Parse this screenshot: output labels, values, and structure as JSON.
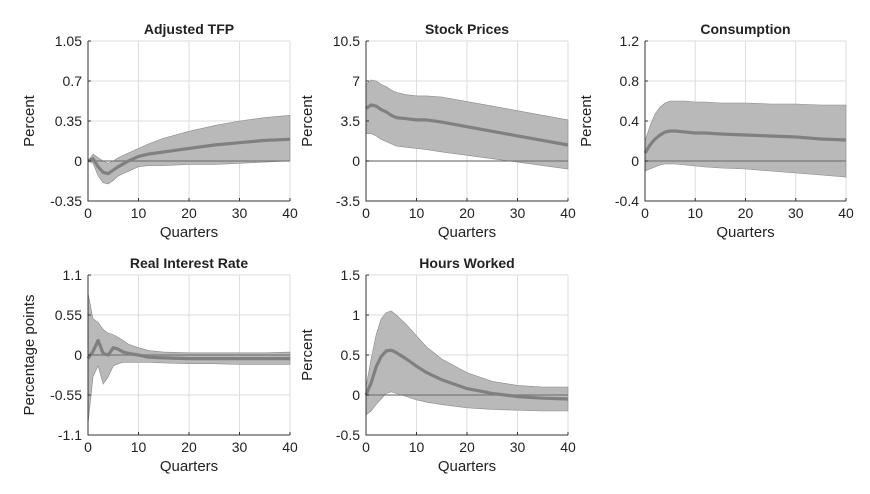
{
  "chart_data": [
    {
      "type": "line",
      "title": "Adjusted TFP",
      "xlabel": "Quarters",
      "ylabel": "Percent",
      "xlim": [
        0,
        40
      ],
      "ylim": [
        -0.35,
        1.05
      ],
      "xticks": [
        "0",
        "10",
        "20",
        "30",
        "40"
      ],
      "yticks": [
        "-0.35",
        "0",
        "0.35",
        "0.7",
        "1.05"
      ],
      "grid": true,
      "x": [
        0,
        1,
        2,
        3,
        4,
        5,
        6,
        8,
        10,
        12,
        15,
        20,
        25,
        30,
        35,
        40
      ],
      "series": [
        {
          "role": "estimate",
          "values": [
            0,
            0.02,
            -0.05,
            -0.1,
            -0.11,
            -0.08,
            -0.05,
            0.0,
            0.04,
            0.06,
            0.08,
            0.11,
            0.14,
            0.16,
            0.18,
            0.19
          ]
        },
        {
          "role": "upper",
          "values": [
            0,
            0.06,
            0.03,
            0.0,
            -0.02,
            0.0,
            0.03,
            0.07,
            0.11,
            0.15,
            0.2,
            0.26,
            0.31,
            0.35,
            0.38,
            0.4
          ]
        },
        {
          "role": "lower",
          "values": [
            0,
            -0.02,
            -0.13,
            -0.19,
            -0.2,
            -0.17,
            -0.13,
            -0.09,
            -0.05,
            -0.04,
            -0.04,
            -0.03,
            -0.03,
            -0.02,
            -0.01,
            0.0
          ]
        }
      ]
    },
    {
      "type": "line",
      "title": "Stock Prices",
      "xlabel": "Quarters",
      "ylabel": "Percent",
      "xlim": [
        0,
        40
      ],
      "ylim": [
        -3.5,
        10.5
      ],
      "xticks": [
        "0",
        "10",
        "20",
        "30",
        "40"
      ],
      "yticks": [
        "-3.5",
        "0",
        "3.5",
        "7",
        "10.5"
      ],
      "grid": true,
      "x": [
        0,
        1,
        2,
        3,
        4,
        5,
        6,
        8,
        10,
        12,
        15,
        20,
        25,
        30,
        35,
        40
      ],
      "series": [
        {
          "role": "estimate",
          "values": [
            4.6,
            4.9,
            4.8,
            4.5,
            4.3,
            4.0,
            3.8,
            3.7,
            3.6,
            3.6,
            3.4,
            3.0,
            2.6,
            2.2,
            1.8,
            1.4
          ]
        },
        {
          "role": "upper",
          "values": [
            6.7,
            7.1,
            7.0,
            6.7,
            6.5,
            6.2,
            6.0,
            5.8,
            5.7,
            5.7,
            5.6,
            5.2,
            4.8,
            4.4,
            4.0,
            3.6
          ]
        },
        {
          "role": "lower",
          "values": [
            2.4,
            2.4,
            2.2,
            1.9,
            1.7,
            1.5,
            1.3,
            1.2,
            1.1,
            1.0,
            0.8,
            0.5,
            0.2,
            -0.1,
            -0.4,
            -0.7
          ]
        }
      ]
    },
    {
      "type": "line",
      "title": "Consumption",
      "xlabel": "Quarters",
      "ylabel": "Percent",
      "xlim": [
        0,
        40
      ],
      "ylim": [
        -0.4,
        1.2
      ],
      "xticks": [
        "0",
        "10",
        "20",
        "30",
        "40"
      ],
      "yticks": [
        "-0.4",
        "0",
        "0.4",
        "0.8",
        "1.2"
      ],
      "grid": true,
      "x": [
        0,
        1,
        2,
        3,
        4,
        5,
        6,
        8,
        10,
        12,
        15,
        20,
        25,
        30,
        35,
        40
      ],
      "series": [
        {
          "role": "estimate",
          "values": [
            0.08,
            0.16,
            0.22,
            0.26,
            0.29,
            0.3,
            0.3,
            0.29,
            0.28,
            0.28,
            0.27,
            0.26,
            0.25,
            0.24,
            0.22,
            0.21
          ]
        },
        {
          "role": "upper",
          "values": [
            0.2,
            0.35,
            0.47,
            0.54,
            0.58,
            0.6,
            0.6,
            0.6,
            0.59,
            0.59,
            0.58,
            0.58,
            0.57,
            0.57,
            0.56,
            0.56
          ]
        },
        {
          "role": "lower",
          "values": [
            -0.1,
            -0.08,
            -0.06,
            -0.04,
            -0.03,
            -0.03,
            -0.03,
            -0.04,
            -0.05,
            -0.06,
            -0.07,
            -0.08,
            -0.1,
            -0.12,
            -0.14,
            -0.16
          ]
        }
      ]
    },
    {
      "type": "line",
      "title": "Real Interest Rate",
      "xlabel": "Quarters",
      "ylabel": "Percentage points",
      "xlim": [
        0,
        40
      ],
      "ylim": [
        -1.1,
        1.1
      ],
      "xticks": [
        "0",
        "10",
        "20",
        "30",
        "40"
      ],
      "yticks": [
        "-1.1",
        "-0.55",
        "0",
        "0.55",
        "1.1"
      ],
      "grid": true,
      "x": [
        0,
        1,
        2,
        3,
        4,
        5,
        6,
        7,
        8,
        10,
        12,
        15,
        20,
        25,
        30,
        35,
        40
      ],
      "series": [
        {
          "role": "estimate",
          "values": [
            -0.05,
            0.05,
            0.2,
            0.02,
            0.0,
            0.1,
            0.08,
            0.04,
            0.02,
            0.0,
            -0.03,
            -0.04,
            -0.05,
            -0.05,
            -0.05,
            -0.05,
            -0.05
          ]
        },
        {
          "role": "upper",
          "values": [
            0.85,
            0.5,
            0.45,
            0.35,
            0.3,
            0.28,
            0.24,
            0.2,
            0.15,
            0.1,
            0.06,
            0.04,
            0.03,
            0.03,
            0.03,
            0.03,
            0.04
          ]
        },
        {
          "role": "lower",
          "values": [
            -0.95,
            -0.3,
            -0.15,
            -0.4,
            -0.3,
            -0.15,
            -0.12,
            -0.1,
            -0.1,
            -0.1,
            -0.1,
            -0.11,
            -0.12,
            -0.12,
            -0.13,
            -0.13,
            -0.13
          ]
        }
      ]
    },
    {
      "type": "line",
      "title": "Hours Worked",
      "xlabel": "Quarters",
      "ylabel": "Percent",
      "xlim": [
        0,
        40
      ],
      "ylim": [
        -0.5,
        1.5
      ],
      "xticks": [
        "0",
        "10",
        "20",
        "30",
        "40"
      ],
      "yticks": [
        "-0.5",
        "0",
        "0.5",
        "1",
        "1.5"
      ],
      "grid": true,
      "x": [
        0,
        1,
        2,
        3,
        4,
        5,
        6,
        8,
        10,
        12,
        15,
        20,
        25,
        30,
        35,
        40
      ],
      "series": [
        {
          "role": "estimate",
          "values": [
            0.0,
            0.15,
            0.35,
            0.48,
            0.55,
            0.56,
            0.53,
            0.45,
            0.36,
            0.28,
            0.19,
            0.08,
            0.02,
            -0.02,
            -0.04,
            -0.05
          ]
        },
        {
          "role": "upper",
          "values": [
            0.1,
            0.45,
            0.75,
            0.95,
            1.03,
            1.05,
            1.0,
            0.88,
            0.74,
            0.6,
            0.45,
            0.28,
            0.17,
            0.12,
            0.1,
            0.1
          ]
        },
        {
          "role": "lower",
          "values": [
            -0.25,
            -0.2,
            -0.12,
            -0.05,
            0.02,
            0.04,
            0.02,
            -0.02,
            -0.06,
            -0.09,
            -0.12,
            -0.16,
            -0.18,
            -0.19,
            -0.2,
            -0.2
          ]
        }
      ]
    }
  ]
}
